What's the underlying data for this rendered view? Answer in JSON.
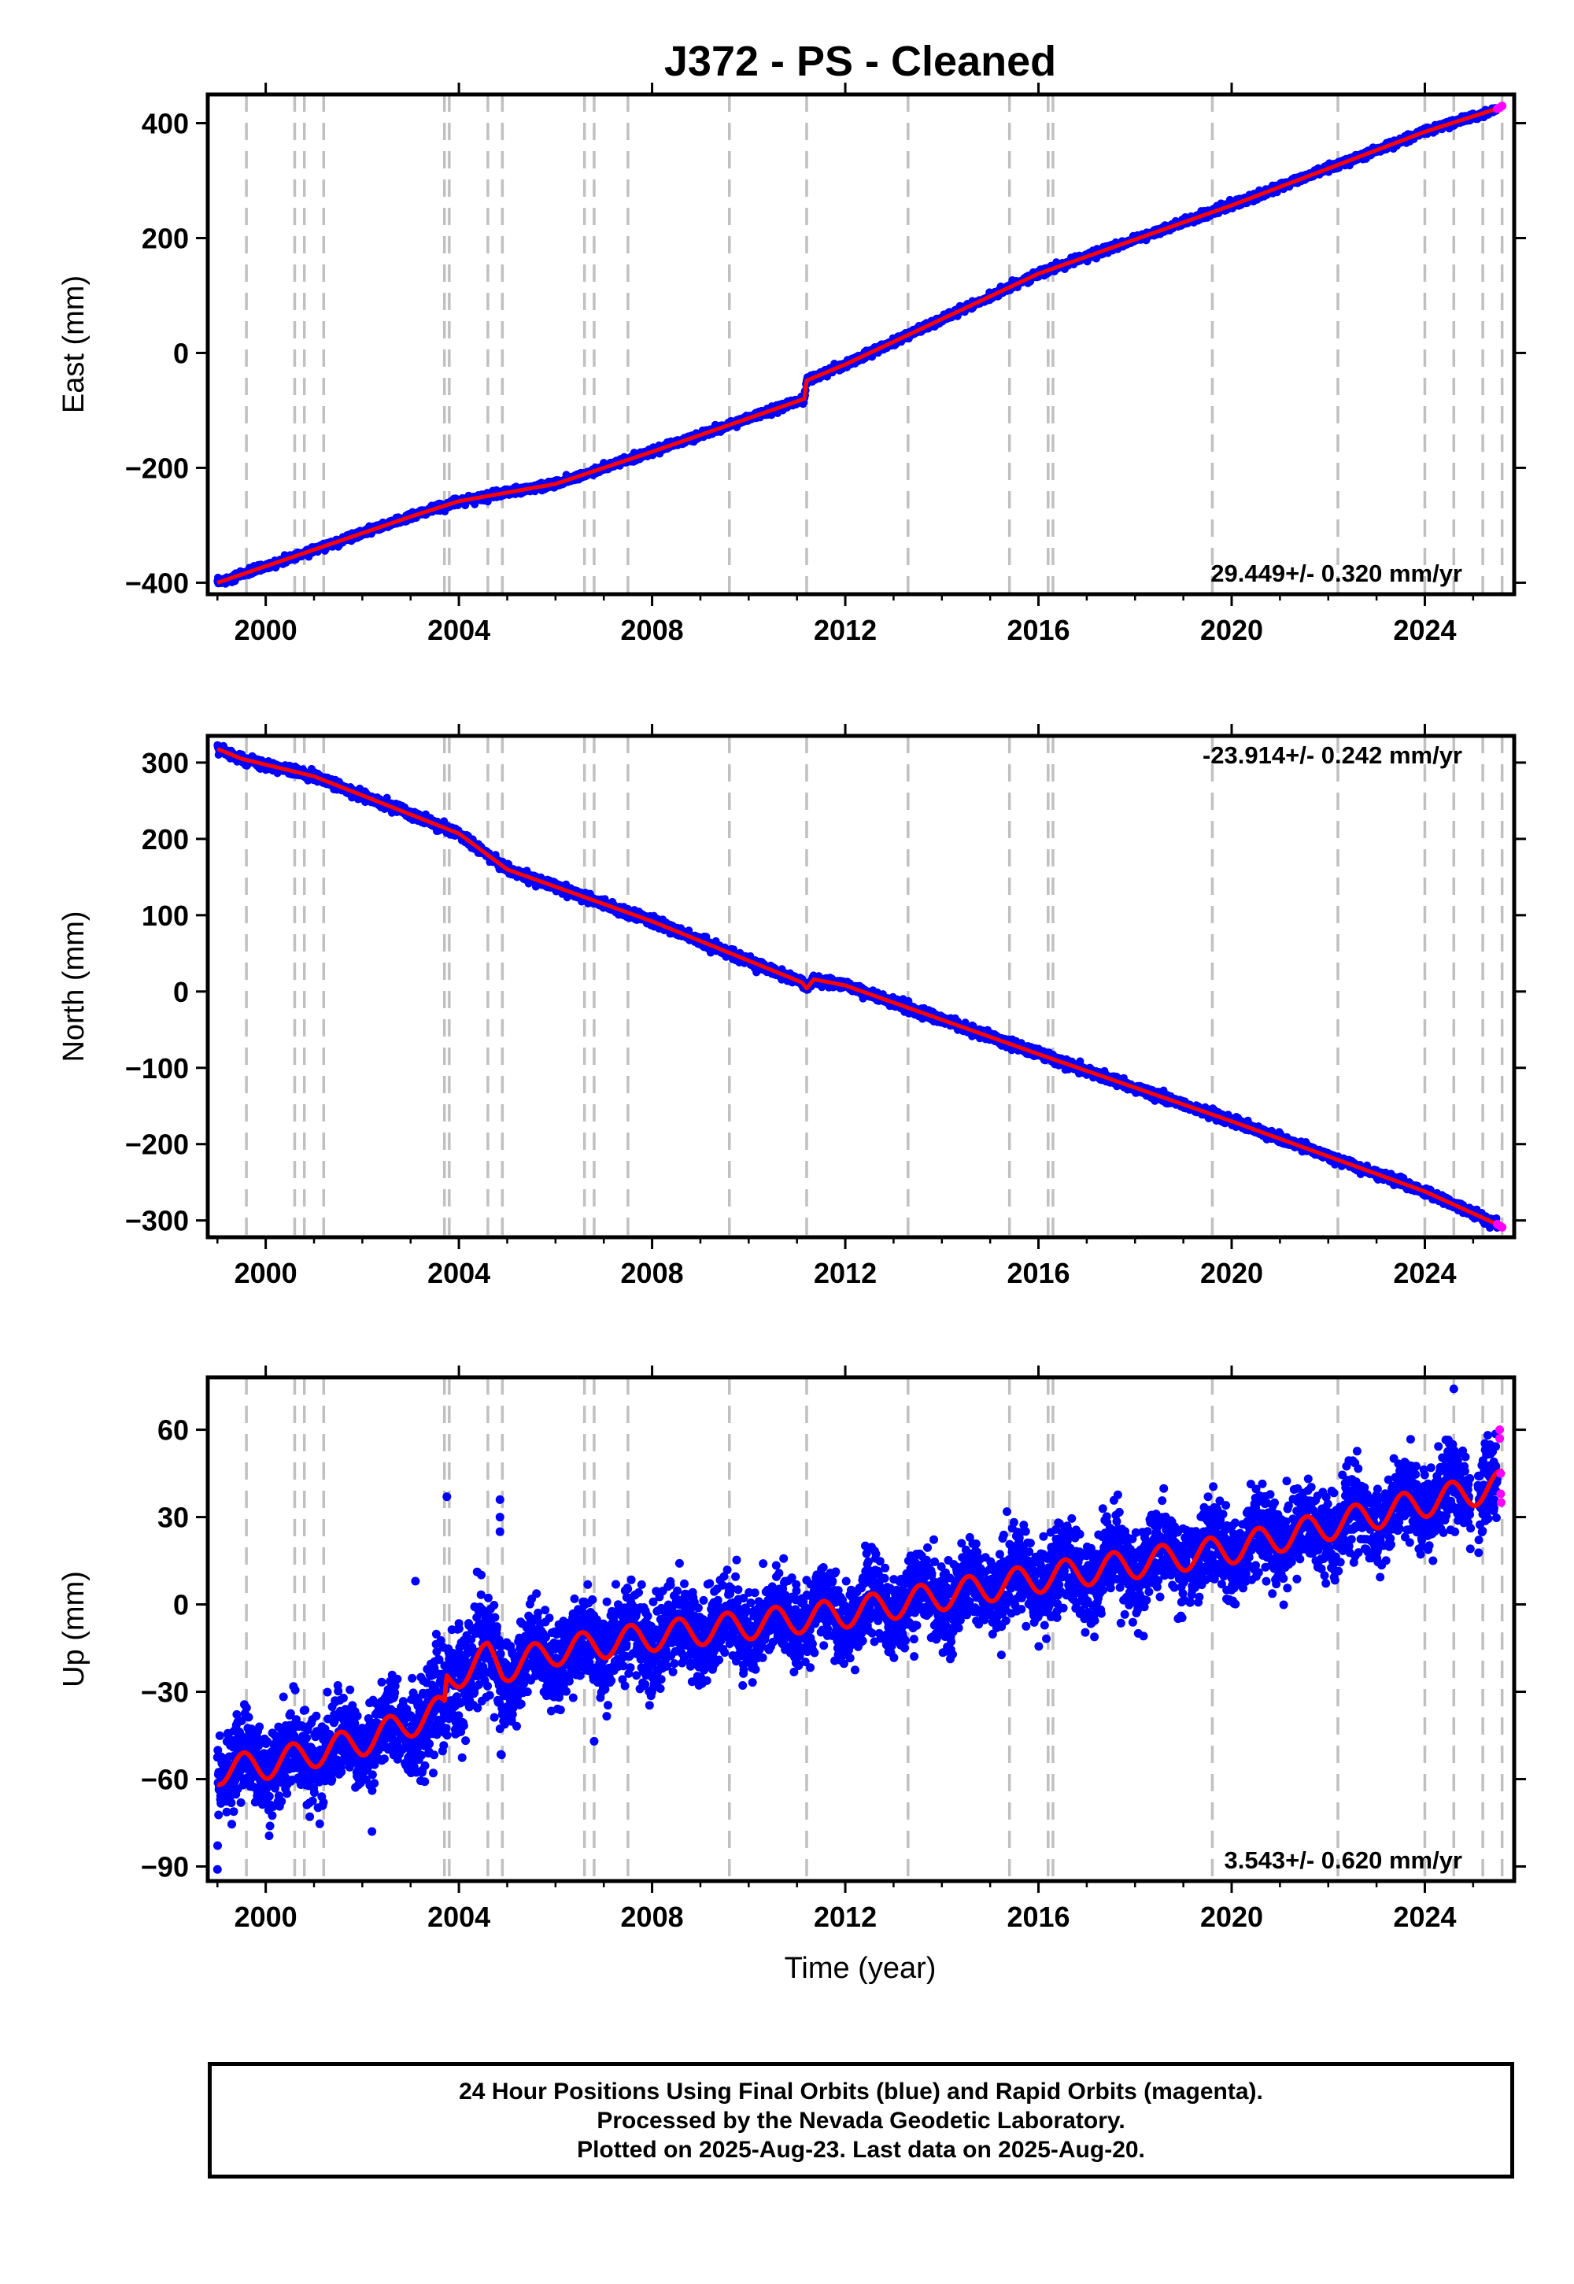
{
  "title": "J372  - PS - Cleaned",
  "xlabel": "Time (year)",
  "footer": {
    "line1": "24 Hour Positions Using Final Orbits (blue) and Rapid Orbits (magenta).",
    "line2": "Processed by the Nevada Geodetic Laboratory.",
    "line3": "Plotted on 2025-Aug-23. Last data on 2025-Aug-20."
  },
  "colors": {
    "final": "#0000ff",
    "rapid": "#ff00ff",
    "model": "#ff0000",
    "grid": "#c0c0c0"
  },
  "chart_data": [
    {
      "type": "scatter",
      "component": "East",
      "ylabel": "East (mm)",
      "rate_text": "29.449+/- 0.320 mm/yr",
      "rate_position": "bottom-right",
      "xlim": [
        1998.8,
        2025.85
      ],
      "ylim": [
        -420,
        450
      ],
      "xticks": [
        2000,
        2004,
        2008,
        2012,
        2016,
        2020,
        2024
      ],
      "yticks": [
        -400,
        -200,
        0,
        200,
        400
      ],
      "event_lines": [
        1999.6,
        2000.6,
        2000.8,
        2001.2,
        2003.7,
        2003.8,
        2004.6,
        2004.9,
        2006.6,
        2006.8,
        2007.5,
        2009.6,
        2011.2,
        2013.3,
        2015.4,
        2016.2,
        2016.3,
        2019.6,
        2022.2,
        2024.0,
        2024.6,
        2025.2,
        2025.6
      ],
      "model_line": [
        [
          1999.0,
          -400
        ],
        [
          2003.0,
          -285
        ],
        [
          2004.0,
          -258
        ],
        [
          2006.0,
          -228
        ],
        [
          2008.0,
          -172
        ],
        [
          2011.15,
          -80
        ],
        [
          2011.2,
          -48
        ],
        [
          2012.0,
          -20
        ],
        [
          2016.0,
          138
        ],
        [
          2020.0,
          257
        ],
        [
          2024.0,
          385
        ],
        [
          2025.6,
          428
        ]
      ],
      "rapid_points": [
        [
          2025.5,
          425
        ],
        [
          2025.55,
          427
        ],
        [
          2025.6,
          430
        ]
      ]
    },
    {
      "type": "scatter",
      "component": "North",
      "ylabel": "North (mm)",
      "rate_text": "-23.914+/- 0.242 mm/yr",
      "rate_position": "top-right",
      "xlim": [
        1998.8,
        2025.85
      ],
      "ylim": [
        -322,
        335
      ],
      "xticks": [
        2000,
        2004,
        2008,
        2012,
        2016,
        2020,
        2024
      ],
      "yticks": [
        -300,
        -200,
        -100,
        0,
        100,
        200,
        300
      ],
      "event_lines": [
        1999.6,
        2000.6,
        2000.8,
        2001.2,
        2003.7,
        2003.8,
        2004.6,
        2004.9,
        2006.6,
        2006.8,
        2007.5,
        2009.6,
        2011.2,
        2013.3,
        2015.4,
        2016.2,
        2016.3,
        2019.6,
        2022.2,
        2024.0,
        2024.6,
        2025.2,
        2025.6
      ],
      "model_line": [
        [
          1999.0,
          318
        ],
        [
          1999.5,
          305
        ],
        [
          2001.0,
          282
        ],
        [
          2004.0,
          207
        ],
        [
          2005.0,
          160
        ],
        [
          2008.0,
          92
        ],
        [
          2011.1,
          12
        ],
        [
          2011.2,
          4
        ],
        [
          2011.35,
          16
        ],
        [
          2012.0,
          8
        ],
        [
          2016.0,
          -82
        ],
        [
          2020.0,
          -170
        ],
        [
          2024.0,
          -262
        ],
        [
          2025.6,
          -308
        ]
      ],
      "rapid_points": [
        [
          2025.5,
          -305
        ],
        [
          2025.55,
          -307
        ],
        [
          2025.6,
          -309
        ]
      ]
    },
    {
      "type": "scatter",
      "component": "Up",
      "ylabel": "Up (mm)",
      "rate_text": "3.543+/- 0.620 mm/yr",
      "rate_position": "bottom-right",
      "xlim": [
        1998.8,
        2025.85
      ],
      "ylim": [
        -95,
        78
      ],
      "xticks": [
        2000,
        2004,
        2008,
        2012,
        2016,
        2020,
        2024
      ],
      "yticks": [
        -90,
        -60,
        -30,
        0,
        30,
        60
      ],
      "event_lines": [
        1999.6,
        2000.6,
        2000.8,
        2001.2,
        2003.7,
        2003.8,
        2004.6,
        2004.9,
        2006.6,
        2006.8,
        2007.5,
        2009.6,
        2011.2,
        2013.3,
        2015.4,
        2016.2,
        2016.3,
        2019.6,
        2022.2,
        2024.0,
        2024.6,
        2025.2,
        2025.6
      ],
      "model_line": [
        [
          1999.0,
          -57
        ],
        [
          2000.0,
          -55
        ],
        [
          2002.0,
          -47
        ],
        [
          2003.7,
          -36
        ],
        [
          2003.75,
          -26
        ],
        [
          2004.6,
          -18
        ],
        [
          2004.9,
          -22
        ],
        [
          2006.0,
          -16
        ],
        [
          2008.0,
          -11
        ],
        [
          2012.0,
          -3
        ],
        [
          2016.0,
          9
        ],
        [
          2020.0,
          19
        ],
        [
          2024.0,
          35
        ],
        [
          2025.6,
          41
        ]
      ],
      "seasonal_amplitude": 5,
      "scatter_sd": 7,
      "outliers": [
        [
          2003.75,
          37
        ],
        [
          2004.85,
          36
        ],
        [
          2004.85,
          30
        ],
        [
          2004.85,
          25
        ],
        [
          2003.1,
          8
        ],
        [
          2006.8,
          -47
        ],
        [
          2024.6,
          74
        ],
        [
          1999.0,
          -91
        ],
        [
          2002.2,
          -78
        ]
      ],
      "rapid_points": [
        [
          2025.55,
          60
        ],
        [
          2025.55,
          57
        ],
        [
          2025.57,
          45
        ],
        [
          2025.57,
          38
        ],
        [
          2025.58,
          35
        ]
      ]
    }
  ]
}
